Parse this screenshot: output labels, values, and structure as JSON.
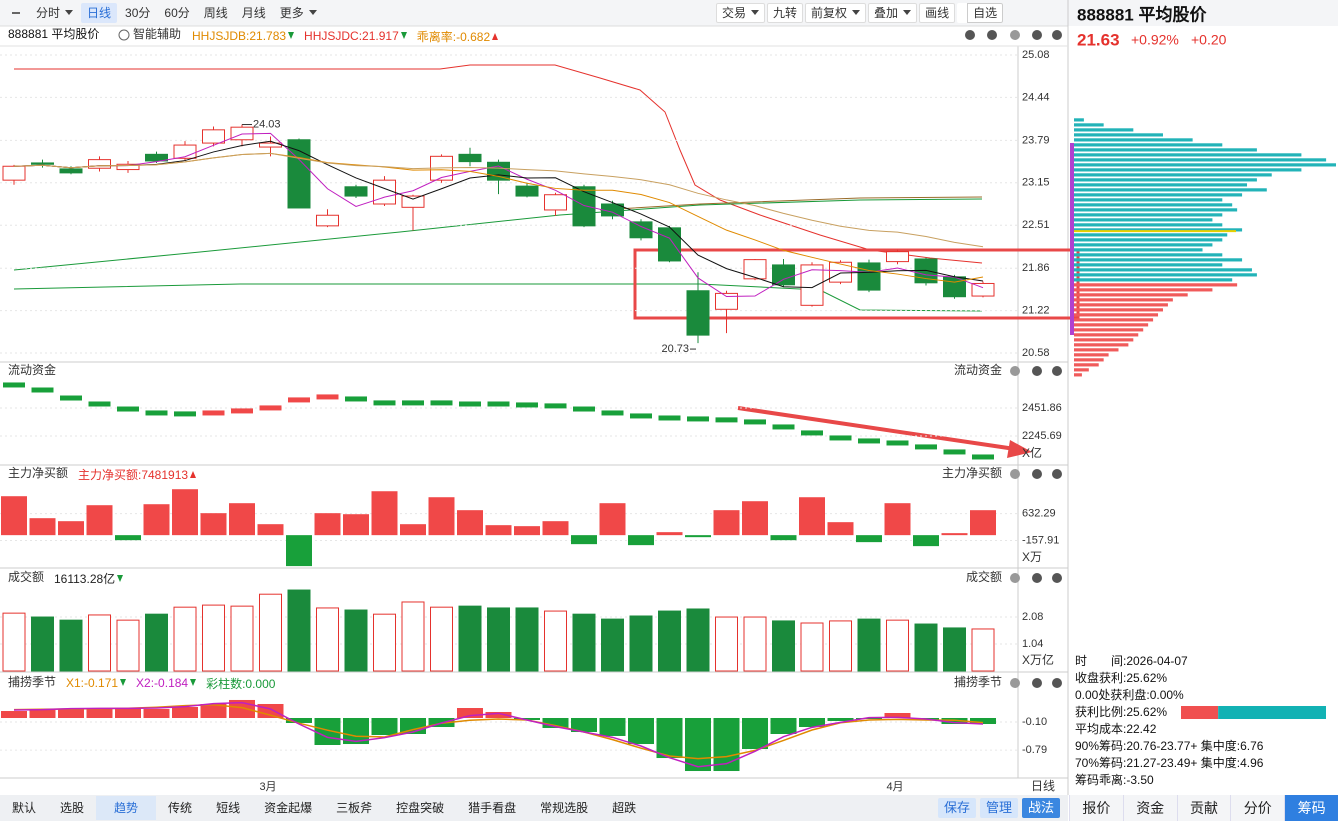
{
  "toolbar": {
    "left": [
      "分时",
      "日线",
      "30分",
      "60分",
      "周线",
      "月线",
      "更多"
    ],
    "right": [
      "交易",
      "九转",
      "前复权",
      "叠加",
      "画线",
      "自选"
    ]
  },
  "main": {
    "title": "888881 平均股价",
    "assist": "智能辅助",
    "indicators": [
      {
        "text": "HHJSJDB:21.783",
        "color": "#e08a00",
        "dir": "down"
      },
      {
        "text": "HHJSJDC:21.917",
        "color": "#e5322d",
        "dir": "down"
      },
      {
        "text": "乖离率:-0.682",
        "color": "#e08a00",
        "dir": "up"
      }
    ],
    "ylim": [
      20.58,
      25.08
    ],
    "yticks": [
      25.08,
      24.44,
      23.79,
      23.15,
      22.51,
      21.86,
      21.22,
      20.58
    ],
    "high": 24.03,
    "low": 20.73,
    "candles": [
      [
        23.19,
        23.42,
        23.12,
        23.4
      ],
      [
        23.45,
        23.5,
        23.38,
        23.43
      ],
      [
        23.36,
        23.4,
        23.28,
        23.3
      ],
      [
        23.37,
        23.55,
        23.32,
        23.5
      ],
      [
        23.35,
        23.48,
        23.3,
        23.43
      ],
      [
        23.58,
        23.62,
        23.45,
        23.48
      ],
      [
        23.52,
        23.78,
        23.48,
        23.72
      ],
      [
        23.75,
        24.0,
        23.7,
        23.95
      ],
      [
        23.8,
        24.03,
        23.7,
        23.99
      ],
      [
        23.69,
        23.85,
        23.55,
        23.75
      ],
      [
        23.8,
        23.82,
        22.77,
        22.77
      ],
      [
        22.5,
        22.75,
        22.48,
        22.66
      ],
      [
        23.09,
        23.12,
        22.92,
        22.95
      ],
      [
        22.83,
        23.25,
        22.8,
        23.19
      ],
      [
        22.78,
        22.97,
        22.43,
        22.95
      ],
      [
        23.19,
        23.58,
        23.15,
        23.55
      ],
      [
        23.58,
        23.68,
        23.4,
        23.47
      ],
      [
        23.46,
        23.5,
        22.98,
        23.19
      ],
      [
        23.1,
        23.15,
        22.93,
        22.95
      ],
      [
        22.74,
        23.0,
        22.65,
        22.97
      ],
      [
        23.09,
        23.12,
        22.48,
        22.5
      ],
      [
        22.83,
        22.88,
        22.6,
        22.65
      ],
      [
        22.56,
        22.6,
        22.28,
        22.32
      ],
      [
        22.47,
        22.5,
        21.95,
        21.97
      ],
      [
        21.52,
        21.8,
        20.73,
        20.85
      ],
      [
        21.24,
        21.52,
        20.88,
        21.48
      ],
      [
        21.7,
        22.0,
        21.68,
        21.99
      ],
      [
        21.91,
        22.0,
        21.58,
        21.61
      ],
      [
        21.3,
        21.95,
        21.28,
        21.91
      ],
      [
        21.65,
        21.98,
        21.62,
        21.95
      ],
      [
        21.94,
        21.99,
        21.5,
        21.53
      ],
      [
        21.96,
        22.14,
        21.92,
        22.11
      ],
      [
        22.0,
        22.02,
        21.6,
        21.64
      ],
      [
        21.73,
        21.76,
        21.4,
        21.43
      ],
      [
        21.44,
        21.66,
        21.42,
        21.63
      ]
    ]
  },
  "flow": {
    "title": "流动资金",
    "unit": "X亿",
    "ylim": [
      2054,
      2768
    ],
    "yticks": [
      2451.86,
      2245.69
    ],
    "values": [
      2621,
      2584,
      2525,
      2481,
      2444,
      2415,
      2408,
      2415,
      2430,
      2452,
      2511,
      2533,
      2518,
      2489,
      2489,
      2489,
      2481,
      2481,
      2474,
      2467,
      2444,
      2415,
      2393,
      2378,
      2371,
      2364,
      2349,
      2312,
      2268,
      2231,
      2209,
      2194,
      2165,
      2128,
      2091
    ]
  },
  "netbuy": {
    "title": "主力净买额",
    "unit": "X万",
    "legend": [
      {
        "text": "主力净买额:7481913",
        "color": "#e5322d",
        "dir": "up"
      }
    ],
    "ylim": [
      -920,
      1912
    ],
    "yticks": [
      632.29,
      -157.91
    ],
    "values": [
      1143,
      498,
      410,
      879,
      -147,
      908,
      1348,
      645,
      938,
      322,
      -908,
      645,
      615,
      1289,
      322,
      1113,
      733,
      293,
      264,
      410,
      -264,
      938,
      -293,
      88,
      -59,
      733,
      996,
      -147,
      1113,
      381,
      -205,
      938,
      -322,
      59,
      733
    ]
  },
  "volume": {
    "title": "成交额",
    "unit": "X万亿",
    "legend": [
      {
        "text": "16113.28亿",
        "color": "#222",
        "dir": "down"
      }
    ],
    "ylim": [
      0,
      3.7
    ],
    "yticks": [
      2.08,
      1.04
    ],
    "values": [
      2.23,
      2.08,
      1.96,
      2.16,
      1.96,
      2.19,
      2.46,
      2.54,
      2.5,
      2.96,
      3.12,
      2.43,
      2.35,
      2.19,
      2.66,
      2.46,
      2.5,
      2.43,
      2.43,
      2.31,
      2.19,
      2.0,
      2.12,
      2.31,
      2.39,
      2.08,
      2.08,
      1.93,
      1.85,
      1.93,
      2.0,
      1.96,
      1.81,
      1.66,
      1.62
    ]
  },
  "season": {
    "title": "捕捞季节",
    "legend": [
      {
        "text": "X1:-0.171",
        "color": "#e08a00",
        "dir": "down"
      },
      {
        "text": "X2:-0.184",
        "color": "#c020c0",
        "dir": "down"
      },
      {
        "text": "彩柱数:0.000",
        "color": "#1a9a3a",
        "dir": "none"
      }
    ],
    "ylim": [
      -1.478,
      0.936
    ],
    "yticks": [
      {
        "value": -0.1,
        "label": "-0.10"
      },
      -0.79
    ],
    "values": [
      0.172,
      0.222,
      0.222,
      0.246,
      0.246,
      0.222,
      0.271,
      0.345,
      0.444,
      0.345,
      -0.123,
      -0.665,
      -0.641,
      -0.419,
      -0.394,
      -0.222,
      0.246,
      0.148,
      -0.049,
      -0.246,
      -0.345,
      -0.443,
      -0.641,
      -0.986,
      -1.306,
      -1.306,
      -0.764,
      -0.394,
      -0.222,
      -0.074,
      -0.025,
      0.123,
      -0.049,
      -0.148,
      -0.148
    ]
  },
  "x_labels": [
    "3月",
    "4月"
  ],
  "period_label": "日线",
  "bottom_tabs": [
    "默认",
    "选股",
    "趋势",
    "传统",
    "短线",
    "资金起爆",
    "三板斧",
    "控盘突破",
    "猎手看盘",
    "常规选股",
    "超跌"
  ],
  "bottom_actions": [
    "保存",
    "管理",
    "战法"
  ],
  "header": {
    "title": "888881 平均股价",
    "price": 21.63,
    "change_pct": "+0.92%",
    "change": "+0.20"
  },
  "chips": {
    "price_top": 24.1,
    "price_bottom": 20.25,
    "values": [
      10,
      30,
      60,
      90,
      120,
      150,
      185,
      230,
      255,
      265,
      230,
      200,
      185,
      175,
      195,
      170,
      150,
      160,
      165,
      150,
      140,
      150,
      170,
      155,
      150,
      140,
      130,
      150,
      170,
      150,
      180,
      185,
      160,
      165,
      140,
      115,
      100,
      95,
      90,
      85,
      80,
      75,
      70,
      65,
      60,
      55,
      45,
      35,
      30,
      25,
      15,
      8
    ]
  },
  "right_info": {
    "lines": [
      "时　　间:2026-04-07",
      "收盘获利:25.62%",
      "0.00处获利盘:0.00%",
      "获利比例:25.62%",
      "平均成本:22.42",
      "90%筹码:20.76-23.77+ 集中度:6.76",
      "70%筹码:21.27-23.49+ 集中度:4.96",
      "筹码乖离:-3.50"
    ],
    "avg_cost": 22.42,
    "profit_ratio": 25.62
  },
  "right_tabs": [
    "报价",
    "资金",
    "贡献",
    "分价",
    "筹码"
  ]
}
